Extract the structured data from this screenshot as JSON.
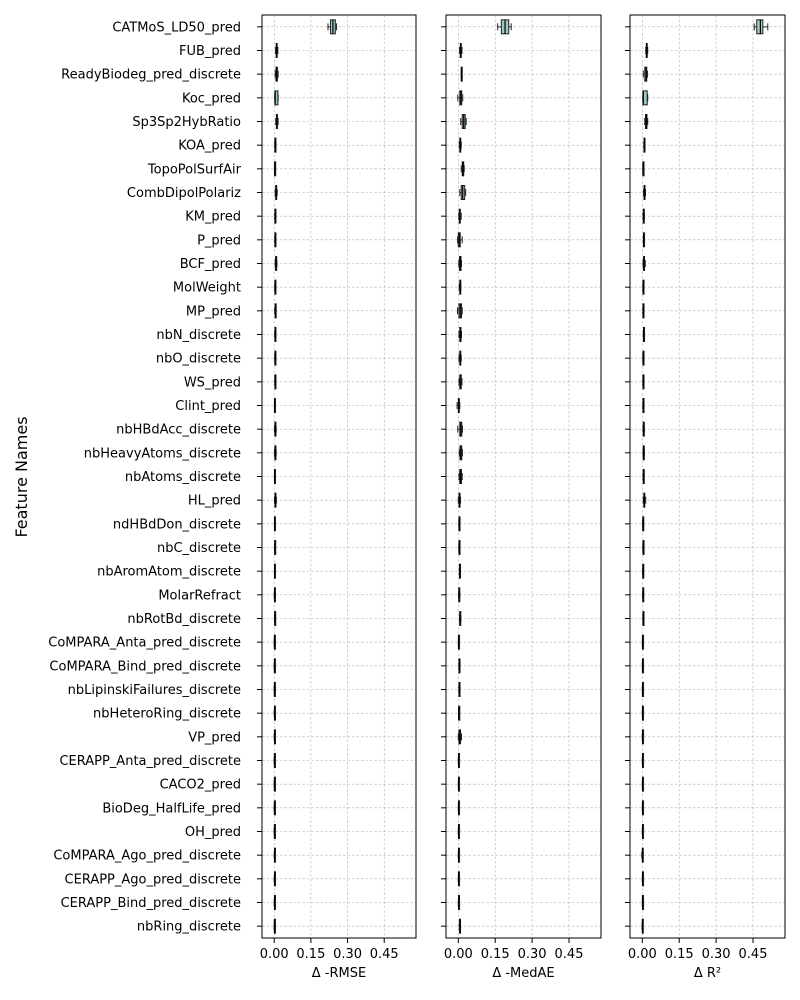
{
  "chart_data": {
    "type": "box",
    "ylabel": "Feature Names",
    "features": [
      "CATMoS_LD50_pred",
      "FUB_pred",
      "ReadyBiodeg_pred_discrete",
      "Koc_pred",
      "Sp3Sp2HybRatio",
      "KOA_pred",
      "TopoPolSurfAir",
      "CombDipolPolariz",
      "KM_pred",
      "P_pred",
      "BCF_pred",
      "MolWeight",
      "MP_pred",
      "nbN_discrete",
      "nbO_discrete",
      "WS_pred",
      "Clint_pred",
      "nbHBdAcc_discrete",
      "nbHeavyAtoms_discrete",
      "nbAtoms_discrete",
      "HL_pred",
      "ndHBdDon_discrete",
      "nbC_discrete",
      "nbAromAtom_discrete",
      "MolarRefract",
      "nbRotBd_discrete",
      "CoMPARA_Anta_pred_discrete",
      "CoMPARA_Bind_pred_discrete",
      "nbLipinskiFailures_discrete",
      "nbHeteroRing_discrete",
      "VP_pred",
      "CERAPP_Anta_pred_discrete",
      "CACO2_pred",
      "BioDeg_HalfLife_pred",
      "OH_pred",
      "CoMPARA_Ago_pred_discrete",
      "CERAPP_Ago_pred_discrete",
      "CERAPP_Bind_pred_discrete",
      "nbRing_discrete"
    ],
    "panels": [
      {
        "xlabel": "Δ -RMSE",
        "xlim": [
          -0.05,
          0.58
        ],
        "xticks": [
          0.0,
          0.15,
          0.3,
          0.45
        ],
        "xtick_labels": [
          "0.00",
          "0.15",
          "0.30",
          "0.45"
        ],
        "boxes": [
          [
            0.22,
            0.23,
            0.24,
            0.25,
            0.255
          ],
          [
            0.005,
            0.008,
            0.01,
            0.012,
            0.015
          ],
          [
            0.004,
            0.007,
            0.01,
            0.013,
            0.016
          ],
          [
            0.002,
            0.003,
            0.004,
            0.015,
            0.016
          ],
          [
            0.006,
            0.009,
            0.011,
            0.013,
            0.016
          ],
          [
            0.002,
            0.003,
            0.004,
            0.006,
            0.007
          ],
          [
            0.001,
            0.002,
            0.002,
            0.003,
            0.003
          ],
          [
            0.004,
            0.006,
            0.008,
            0.01,
            0.012
          ],
          [
            0.002,
            0.003,
            0.004,
            0.005,
            0.006
          ],
          [
            0.002,
            0.003,
            0.004,
            0.005,
            0.006
          ],
          [
            0.004,
            0.006,
            0.007,
            0.009,
            0.011
          ],
          [
            0.002,
            0.003,
            0.004,
            0.005,
            0.006
          ],
          [
            0.002,
            0.004,
            0.005,
            0.006,
            0.007
          ],
          [
            0.002,
            0.003,
            0.004,
            0.006,
            0.007
          ],
          [
            0.002,
            0.003,
            0.004,
            0.005,
            0.006
          ],
          [
            0.002,
            0.003,
            0.004,
            0.005,
            0.006
          ],
          [
            0.001,
            0.001,
            0.002,
            0.002,
            0.003
          ],
          [
            0.001,
            0.003,
            0.004,
            0.006,
            0.008
          ],
          [
            0.001,
            0.003,
            0.004,
            0.006,
            0.008
          ],
          [
            0.001,
            0.001,
            0.002,
            0.002,
            0.003
          ],
          [
            0.001,
            0.003,
            0.005,
            0.007,
            0.009
          ],
          [
            0.001,
            0.001,
            0.002,
            0.002,
            0.003
          ],
          [
            0.001,
            0.002,
            0.003,
            0.004,
            0.005
          ],
          [
            0.001,
            0.001,
            0.002,
            0.002,
            0.003
          ],
          [
            0.0,
            0.001,
            0.002,
            0.003,
            0.004
          ],
          [
            0.001,
            0.002,
            0.003,
            0.004,
            0.005
          ],
          [
            0.0,
            0.001,
            0.001,
            0.001,
            0.002
          ],
          [
            0.0,
            0.001,
            0.001,
            0.001,
            0.002
          ],
          [
            0.0,
            0.001,
            0.001,
            0.001,
            0.002
          ],
          [
            0.0,
            0.001,
            0.002,
            0.003,
            0.004
          ],
          [
            0.0,
            0.001,
            0.002,
            0.003,
            0.004
          ],
          [
            0.0,
            0.001,
            0.001,
            0.001,
            0.002
          ],
          [
            0.0,
            0.001,
            0.001,
            0.001,
            0.002
          ],
          [
            0.0,
            0.001,
            0.001,
            0.001,
            0.002
          ],
          [
            0.0,
            0.001,
            0.001,
            0.001,
            0.002
          ],
          [
            0.0,
            0.001,
            0.002,
            0.003,
            0.004
          ],
          [
            0.0,
            0.001,
            0.002,
            0.003,
            0.004
          ],
          [
            0.0,
            0.001,
            0.002,
            0.003,
            0.004
          ],
          [
            0.0,
            0.001,
            0.001,
            0.001,
            0.002
          ]
        ]
      },
      {
        "xlabel": "Δ -MedAE",
        "xlim": [
          -0.05,
          0.58
        ],
        "xticks": [
          0.0,
          0.15,
          0.3,
          0.45
        ],
        "xtick_labels": [
          "0.00",
          "0.15",
          "0.30",
          "0.45"
        ],
        "boxes": [
          [
            0.16,
            0.175,
            0.19,
            0.205,
            0.215
          ],
          [
            0.005,
            0.008,
            0.01,
            0.012,
            0.015
          ],
          [
            0.012,
            0.012,
            0.013,
            0.014,
            0.014
          ],
          [
            -0.002,
            0.006,
            0.01,
            0.014,
            0.018
          ],
          [
            0.01,
            0.016,
            0.022,
            0.028,
            0.032
          ],
          [
            0.004,
            0.006,
            0.008,
            0.01,
            0.012
          ],
          [
            0.012,
            0.016,
            0.019,
            0.022,
            0.024
          ],
          [
            0.006,
            0.012,
            0.018,
            0.026,
            0.03
          ],
          [
            0.002,
            0.004,
            0.006,
            0.008,
            0.012
          ],
          [
            -0.003,
            0.0,
            0.004,
            0.008,
            0.016
          ],
          [
            0.002,
            0.005,
            0.008,
            0.011,
            0.013
          ],
          [
            0.004,
            0.006,
            0.008,
            0.009,
            0.01
          ],
          [
            -0.003,
            0.003,
            0.008,
            0.013,
            0.016
          ],
          [
            0.003,
            0.006,
            0.008,
            0.011,
            0.013
          ],
          [
            0.003,
            0.006,
            0.008,
            0.01,
            0.012
          ],
          [
            0.003,
            0.006,
            0.008,
            0.012,
            0.015
          ],
          [
            -0.005,
            0.0,
            0.002,
            0.004,
            0.006
          ],
          [
            -0.002,
            0.006,
            0.01,
            0.014,
            0.017
          ],
          [
            0.004,
            0.007,
            0.01,
            0.014,
            0.017
          ],
          [
            0.003,
            0.006,
            0.009,
            0.013,
            0.016
          ],
          [
            0.0,
            0.003,
            0.005,
            0.007,
            0.009
          ],
          [
            0.002,
            0.003,
            0.004,
            0.005,
            0.006
          ],
          [
            0.002,
            0.003,
            0.004,
            0.005,
            0.006
          ],
          [
            0.004,
            0.005,
            0.006,
            0.008,
            0.009
          ],
          [
            0.001,
            0.002,
            0.003,
            0.004,
            0.006
          ],
          [
            0.005,
            0.006,
            0.007,
            0.009,
            0.01
          ],
          [
            0.0,
            0.001,
            0.001,
            0.001,
            0.002
          ],
          [
            0.002,
            0.003,
            0.004,
            0.005,
            0.006
          ],
          [
            0.002,
            0.003,
            0.004,
            0.006,
            0.007
          ],
          [
            0.001,
            0.002,
            0.002,
            0.003,
            0.004
          ],
          [
            0.0,
            0.003,
            0.006,
            0.009,
            0.013
          ],
          [
            0.0,
            0.001,
            0.001,
            0.001,
            0.002
          ],
          [
            0.0,
            0.001,
            0.001,
            0.001,
            0.002
          ],
          [
            0.0,
            0.001,
            0.001,
            0.001,
            0.002
          ],
          [
            0.0,
            0.001,
            0.001,
            0.001,
            0.002
          ],
          [
            0.0,
            0.001,
            0.001,
            0.001,
            0.002
          ],
          [
            0.0,
            0.001,
            0.001,
            0.001,
            0.002
          ],
          [
            0.0,
            0.001,
            0.002,
            0.003,
            0.004
          ],
          [
            0.004,
            0.005,
            0.007,
            0.008,
            0.009
          ]
        ]
      },
      {
        "xlabel": "Δ R²",
        "xlim": [
          -0.05,
          0.58
        ],
        "xticks": [
          0.0,
          0.15,
          0.3,
          0.45
        ],
        "xtick_labels": [
          "0.00",
          "0.15",
          "0.30",
          "0.45"
        ],
        "boxes": [
          [
            0.455,
            0.465,
            0.48,
            0.49,
            0.51
          ],
          [
            0.014,
            0.016,
            0.018,
            0.02,
            0.022
          ],
          [
            0.004,
            0.01,
            0.015,
            0.018,
            0.021
          ],
          [
            0.002,
            0.003,
            0.004,
            0.02,
            0.022
          ],
          [
            0.01,
            0.013,
            0.016,
            0.019,
            0.022
          ],
          [
            0.006,
            0.007,
            0.008,
            0.009,
            0.01
          ],
          [
            0.002,
            0.003,
            0.003,
            0.003,
            0.004
          ],
          [
            0.005,
            0.007,
            0.009,
            0.011,
            0.013
          ],
          [
            0.003,
            0.004,
            0.006,
            0.007,
            0.008
          ],
          [
            0.004,
            0.005,
            0.006,
            0.007,
            0.008
          ],
          [
            0.003,
            0.005,
            0.007,
            0.009,
            0.012
          ],
          [
            0.002,
            0.003,
            0.004,
            0.004,
            0.005
          ],
          [
            0.002,
            0.003,
            0.004,
            0.004,
            0.005
          ],
          [
            0.004,
            0.005,
            0.006,
            0.007,
            0.008
          ],
          [
            0.002,
            0.003,
            0.004,
            0.005,
            0.006
          ],
          [
            0.002,
            0.003,
            0.004,
            0.005,
            0.006
          ],
          [
            0.002,
            0.003,
            0.004,
            0.005,
            0.006
          ],
          [
            0.003,
            0.004,
            0.006,
            0.007,
            0.008
          ],
          [
            0.003,
            0.004,
            0.006,
            0.007,
            0.008
          ],
          [
            0.003,
            0.004,
            0.005,
            0.006,
            0.007
          ],
          [
            0.004,
            0.006,
            0.008,
            0.01,
            0.014
          ],
          [
            0.001,
            0.002,
            0.003,
            0.004,
            0.005
          ],
          [
            0.002,
            0.003,
            0.004,
            0.006,
            0.007
          ],
          [
            0.001,
            0.002,
            0.003,
            0.004,
            0.005
          ],
          [
            0.001,
            0.002,
            0.003,
            0.004,
            0.005
          ],
          [
            0.002,
            0.003,
            0.004,
            0.005,
            0.006
          ],
          [
            0.0,
            0.001,
            0.001,
            0.001,
            0.002
          ],
          [
            0.0,
            0.001,
            0.001,
            0.001,
            0.002
          ],
          [
            0.0,
            0.001,
            0.001,
            0.001,
            0.002
          ],
          [
            0.0,
            0.001,
            0.001,
            0.001,
            0.002
          ],
          [
            0.0,
            0.001,
            0.001,
            0.001,
            0.002
          ],
          [
            0.0,
            0.001,
            0.001,
            0.001,
            0.002
          ],
          [
            0.0,
            0.001,
            0.001,
            0.001,
            0.002
          ],
          [
            0.0,
            0.001,
            0.001,
            0.001,
            0.002
          ],
          [
            0.0,
            0.001,
            0.001,
            0.001,
            0.002
          ],
          [
            -0.002,
            0.0,
            0.001,
            0.002,
            0.003
          ],
          [
            0.0,
            0.001,
            0.001,
            0.001,
            0.002
          ],
          [
            0.0,
            0.001,
            0.001,
            0.001,
            0.002
          ],
          [
            -0.001,
            0.0,
            0.001,
            0.001,
            0.002
          ]
        ]
      }
    ]
  }
}
